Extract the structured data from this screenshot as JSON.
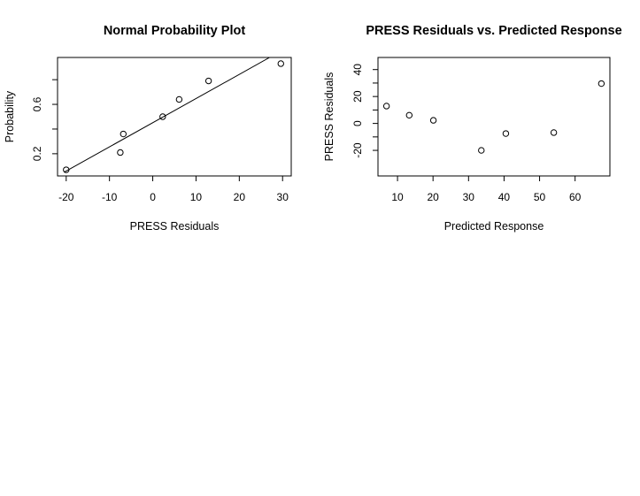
{
  "chart_data": [
    {
      "type": "scatter",
      "title": "Normal Probability Plot",
      "xlabel": "PRESS Residuals",
      "ylabel": "Probability",
      "xlim": [
        -22,
        32
      ],
      "ylim": [
        0.02,
        0.98
      ],
      "xticks": [
        -20,
        -10,
        0,
        10,
        20,
        30
      ],
      "xtick_labels": [
        "-20",
        "-10",
        "0",
        "10",
        "20",
        "30"
      ],
      "yticks": [
        0.2,
        0.6
      ],
      "ytick_labels": [
        "0.2",
        "0.6"
      ],
      "yticks_minor": [
        0.4,
        0.8
      ],
      "grid": false,
      "points": [
        {
          "x": -20,
          "y": 0.07
        },
        {
          "x": -7.5,
          "y": 0.21
        },
        {
          "x": -6.8,
          "y": 0.36
        },
        {
          "x": 2.3,
          "y": 0.5
        },
        {
          "x": 6.1,
          "y": 0.64
        },
        {
          "x": 12.9,
          "y": 0.79
        },
        {
          "x": 29.6,
          "y": 0.93
        }
      ],
      "reference_line": {
        "x": [
          -20.5,
          27
        ],
        "y": [
          0.05,
          0.98
        ]
      }
    },
    {
      "type": "scatter",
      "title": "PRESS Residuals vs. Predicted Response",
      "xlabel": "Predicted Response",
      "ylabel": "PRESS Residuals",
      "xlim": [
        4.5,
        69.8
      ],
      "ylim": [
        -39,
        49
      ],
      "xticks": [
        10,
        20,
        30,
        40,
        50,
        60
      ],
      "xtick_labels": [
        "10",
        "20",
        "30",
        "40",
        "50",
        "60"
      ],
      "yticks": [
        -20,
        0,
        20,
        40
      ],
      "ytick_labels": [
        "-20",
        "0",
        "20",
        "40"
      ],
      "yticks_minor": [
        -10,
        10,
        30
      ],
      "grid": false,
      "points": [
        {
          "x": 6.9,
          "y": 12.9
        },
        {
          "x": 13.3,
          "y": 6.1
        },
        {
          "x": 20.1,
          "y": 2.3
        },
        {
          "x": 33.6,
          "y": -20.0
        },
        {
          "x": 40.5,
          "y": -7.5
        },
        {
          "x": 54.0,
          "y": -6.8
        },
        {
          "x": 67.4,
          "y": 29.6
        }
      ]
    }
  ]
}
